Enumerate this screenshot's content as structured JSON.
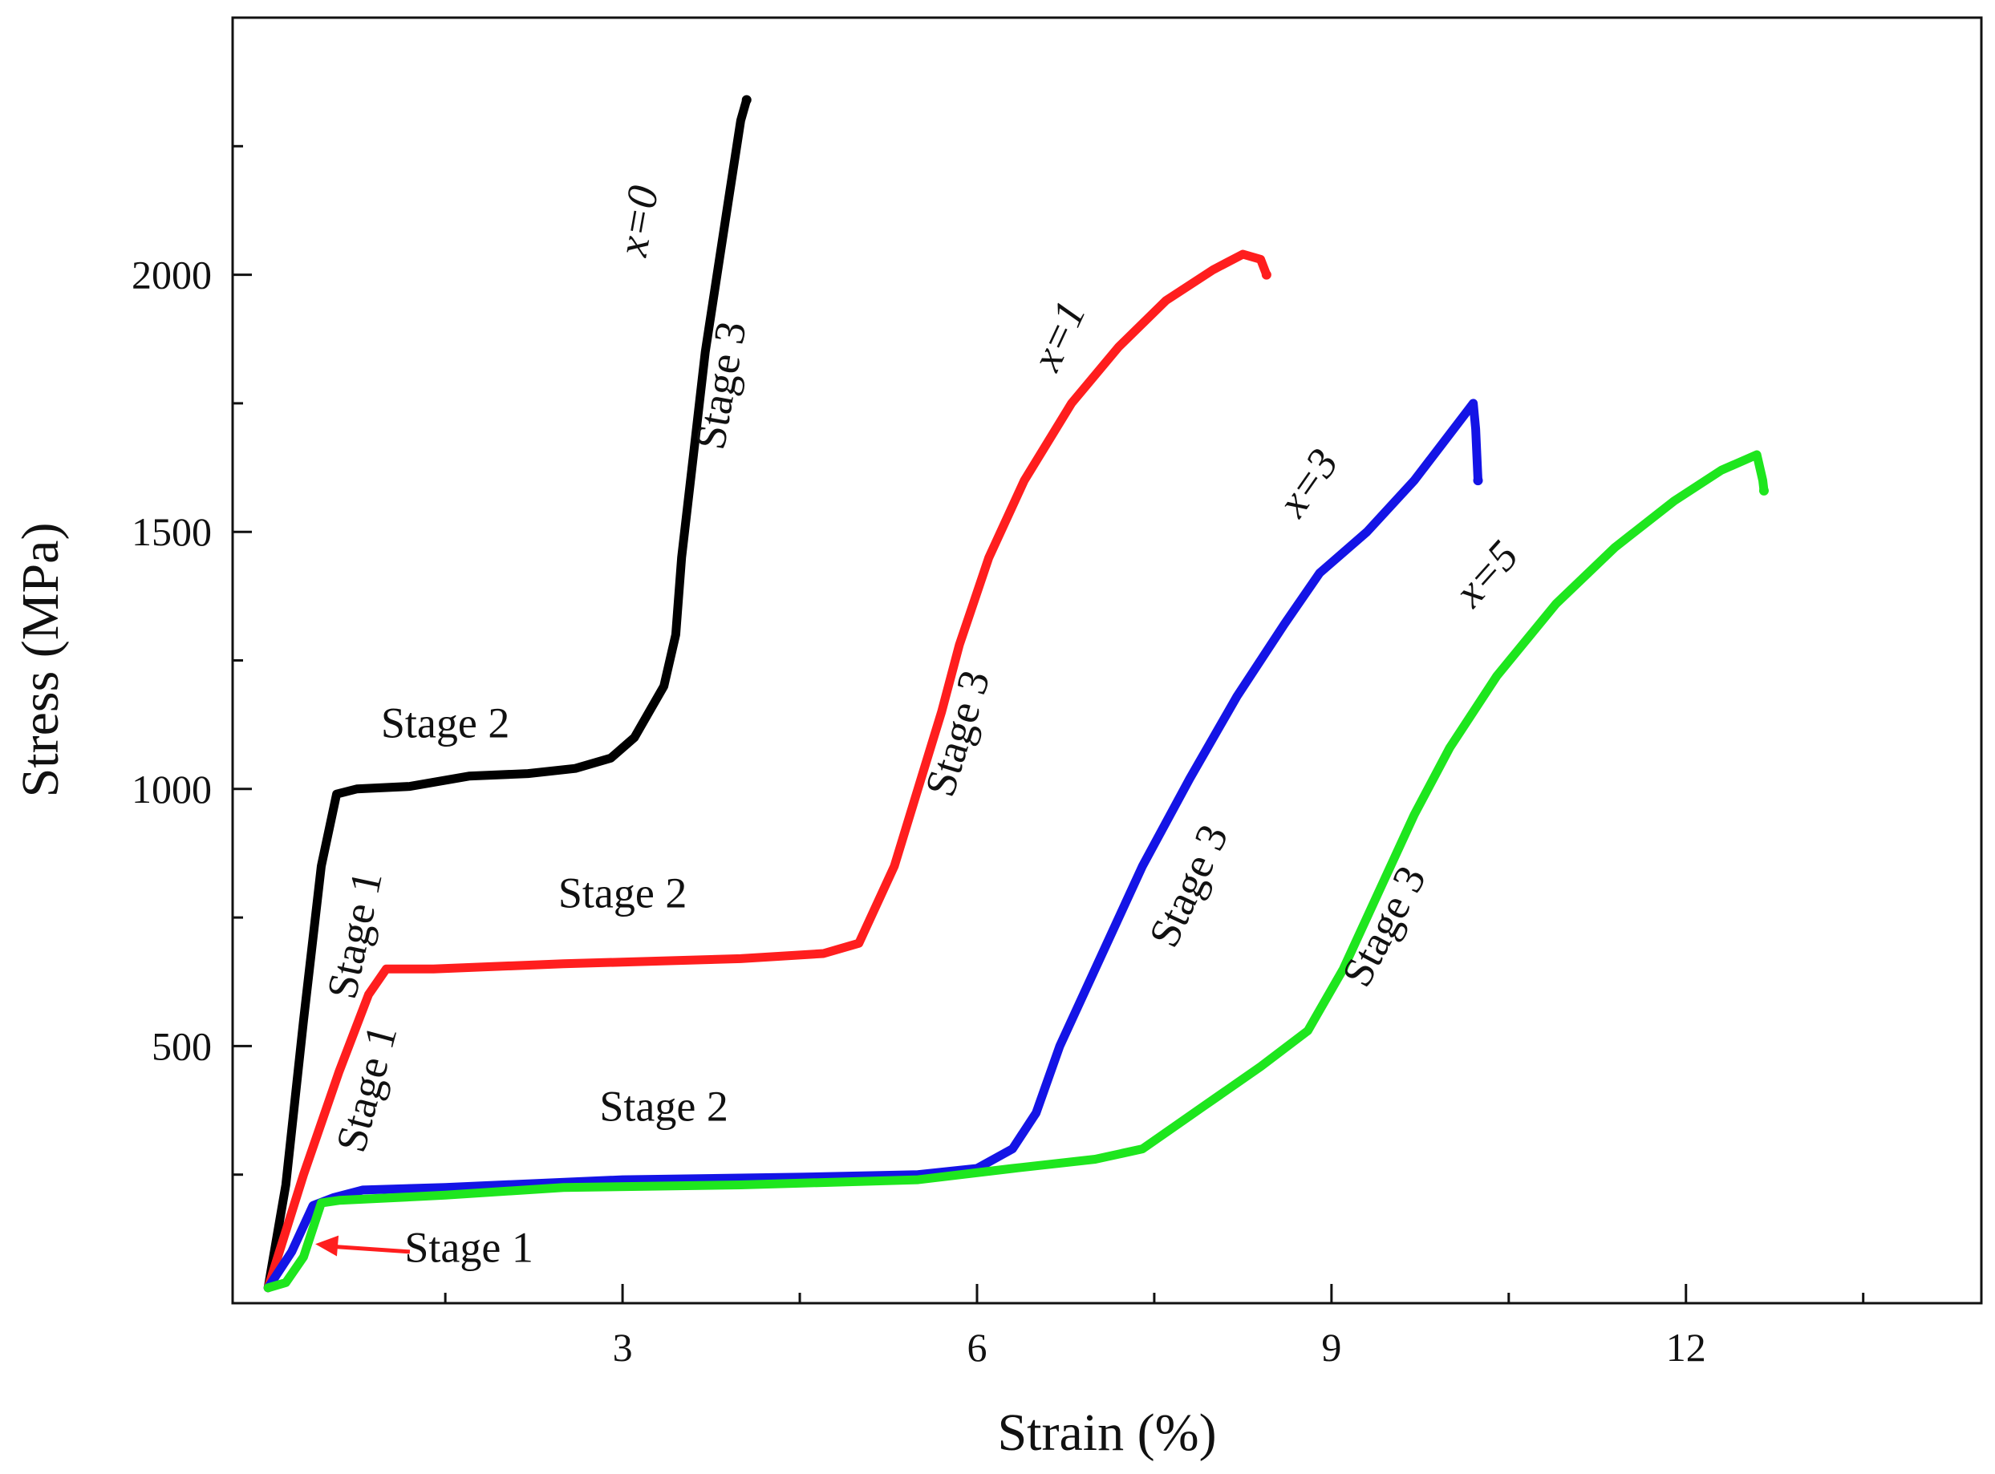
{
  "chart_data": {
    "type": "line",
    "title": "",
    "xlabel": "Strain (%)",
    "ylabel": "Stress (MPa)",
    "xlim": [
      -0.3,
      14.5
    ],
    "ylim": [
      0,
      2500
    ],
    "x_ticks": [
      3,
      6,
      9,
      12
    ],
    "y_ticks": [
      500,
      1000,
      1500,
      2000
    ],
    "x_minor_ticks": [
      1.5,
      4.5,
      7.5,
      10.5,
      13.5
    ],
    "y_minor_ticks": [
      250,
      750,
      1250,
      1750,
      2250
    ],
    "grid": false,
    "series": [
      {
        "name": "x=0",
        "color": "#000000",
        "label": "x=0",
        "points": [
          [
            0.0,
            30
          ],
          [
            0.15,
            230
          ],
          [
            0.3,
            550
          ],
          [
            0.45,
            850
          ],
          [
            0.58,
            990
          ],
          [
            0.75,
            1000
          ],
          [
            1.2,
            1005
          ],
          [
            1.7,
            1025
          ],
          [
            2.2,
            1030
          ],
          [
            2.6,
            1040
          ],
          [
            2.9,
            1060
          ],
          [
            3.1,
            1100
          ],
          [
            3.35,
            1200
          ],
          [
            3.45,
            1300
          ],
          [
            3.5,
            1450
          ],
          [
            3.6,
            1650
          ],
          [
            3.7,
            1850
          ],
          [
            3.8,
            2000
          ],
          [
            3.9,
            2150
          ],
          [
            4.0,
            2300
          ],
          [
            4.05,
            2340
          ]
        ]
      },
      {
        "name": "x=1",
        "color": "#ff1e1e",
        "label": "x=1",
        "points": [
          [
            0.0,
            30
          ],
          [
            0.3,
            250
          ],
          [
            0.6,
            450
          ],
          [
            0.85,
            600
          ],
          [
            1.0,
            650
          ],
          [
            1.4,
            650
          ],
          [
            2.5,
            660
          ],
          [
            4.0,
            670
          ],
          [
            4.7,
            680
          ],
          [
            5.0,
            700
          ],
          [
            5.3,
            850
          ],
          [
            5.5,
            1000
          ],
          [
            5.7,
            1150
          ],
          [
            5.85,
            1280
          ],
          [
            6.1,
            1450
          ],
          [
            6.4,
            1600
          ],
          [
            6.8,
            1750
          ],
          [
            7.2,
            1860
          ],
          [
            7.6,
            1950
          ],
          [
            8.0,
            2010
          ],
          [
            8.25,
            2040
          ],
          [
            8.4,
            2030
          ],
          [
            8.45,
            2000
          ]
        ]
      },
      {
        "name": "x=3",
        "color": "#1414e6",
        "label": "x=3",
        "points": [
          [
            0.0,
            30
          ],
          [
            0.2,
            100
          ],
          [
            0.38,
            190
          ],
          [
            0.55,
            205
          ],
          [
            0.8,
            220
          ],
          [
            1.5,
            225
          ],
          [
            3.0,
            240
          ],
          [
            4.5,
            245
          ],
          [
            5.5,
            250
          ],
          [
            6.0,
            262
          ],
          [
            6.3,
            300
          ],
          [
            6.5,
            370
          ],
          [
            6.7,
            500
          ],
          [
            7.0,
            650
          ],
          [
            7.4,
            850
          ],
          [
            7.8,
            1020
          ],
          [
            8.2,
            1180
          ],
          [
            8.6,
            1320
          ],
          [
            8.9,
            1420
          ],
          [
            9.3,
            1500
          ],
          [
            9.7,
            1600
          ],
          [
            10.0,
            1690
          ],
          [
            10.2,
            1750
          ],
          [
            10.22,
            1700
          ],
          [
            10.24,
            1600
          ]
        ]
      },
      {
        "name": "x=5",
        "color": "#1ee61e",
        "label": "x=5",
        "points": [
          [
            0.0,
            30
          ],
          [
            0.15,
            40
          ],
          [
            0.3,
            90
          ],
          [
            0.45,
            195
          ],
          [
            0.6,
            200
          ],
          [
            1.5,
            210
          ],
          [
            2.5,
            225
          ],
          [
            4.0,
            230
          ],
          [
            5.5,
            240
          ],
          [
            6.3,
            262
          ],
          [
            7.0,
            280
          ],
          [
            7.4,
            300
          ],
          [
            7.9,
            380
          ],
          [
            8.4,
            460
          ],
          [
            8.8,
            530
          ],
          [
            9.1,
            650
          ],
          [
            9.4,
            800
          ],
          [
            9.7,
            950
          ],
          [
            10.0,
            1080
          ],
          [
            10.4,
            1220
          ],
          [
            10.9,
            1360
          ],
          [
            11.4,
            1470
          ],
          [
            11.9,
            1560
          ],
          [
            12.3,
            1620
          ],
          [
            12.6,
            1650
          ],
          [
            12.65,
            1600
          ],
          [
            12.66,
            1580
          ]
        ]
      }
    ],
    "annotations": [
      {
        "id": "a1",
        "text": "Stage 2",
        "x": 1.5,
        "y": 1100,
        "rotation": 0
      },
      {
        "id": "a2",
        "text": "Stage 3",
        "x": 3.95,
        "y": 1780,
        "rotation": -80
      },
      {
        "id": "a3",
        "text": "Stage 1",
        "x": 0.85,
        "y": 710,
        "rotation": -78
      },
      {
        "id": "a4",
        "text": "Stage 2",
        "x": 3.0,
        "y": 770,
        "rotation": 0
      },
      {
        "id": "a5",
        "text": "Stage 3",
        "x": 5.95,
        "y": 1100,
        "rotation": -73
      },
      {
        "id": "a6",
        "text": "Stage 1",
        "x": 0.95,
        "y": 410,
        "rotation": -75
      },
      {
        "id": "a7",
        "text": "Stage 2",
        "x": 3.35,
        "y": 355,
        "rotation": 0
      },
      {
        "id": "a8",
        "text": "Stage 3",
        "x": 7.9,
        "y": 800,
        "rotation": -65
      },
      {
        "id": "a9",
        "text": "Stage 3",
        "x": 9.55,
        "y": 720,
        "rotation": -62
      },
      {
        "id": "a10",
        "text": "Stage 1",
        "x": 1.7,
        "y": 80,
        "rotation": 0
      }
    ],
    "curve_labels": [
      {
        "series": "x=0",
        "text": "x=0",
        "x": 3.25,
        "y": 2100,
        "rotation": -80
      },
      {
        "series": "x=1",
        "text": "x=1",
        "x": 6.8,
        "y": 1870,
        "rotation": -65
      },
      {
        "series": "x=3",
        "text": "x=3",
        "x": 8.9,
        "y": 1580,
        "rotation": -55
      },
      {
        "series": "x=5",
        "text": "x=5",
        "x": 10.4,
        "y": 1400,
        "rotation": -48
      }
    ],
    "arrow": {
      "color": "#ff1e1e",
      "from": [
        1.2,
        100
      ],
      "to": [
        0.4,
        115
      ]
    }
  }
}
